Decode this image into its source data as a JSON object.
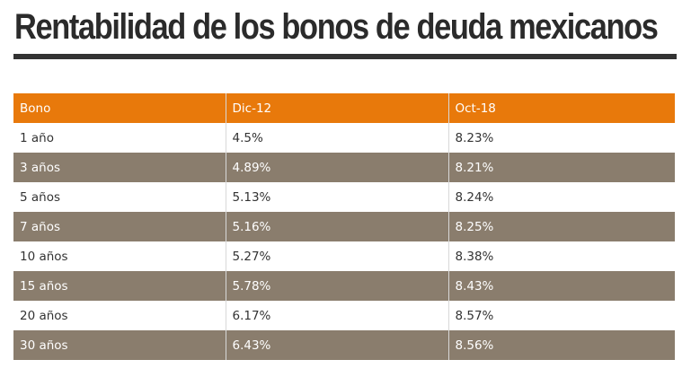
{
  "title": "Rentabilidad de los bonos de deuda mexicanos",
  "colors": {
    "header_bg": "#e8790b",
    "alt_row_bg": "#8a7d6d",
    "title_rule": "#333333"
  },
  "chart_data": {
    "type": "table",
    "title": "Rentabilidad de los bonos de deuda mexicanos",
    "columns": [
      "Bono",
      "Dic-12",
      "Oct-18"
    ],
    "rows": [
      [
        "1 año",
        "4.5%",
        "8.23%"
      ],
      [
        "3 años",
        "4.89%",
        "8.21%"
      ],
      [
        "5 años",
        "5.13%",
        "8.24%"
      ],
      [
        "7 años",
        "5.16%",
        "8.25%"
      ],
      [
        "10 años",
        "5.27%",
        "8.38%"
      ],
      [
        "15 años",
        "5.78%",
        "8.43%"
      ],
      [
        "20 años",
        "6.17%",
        "8.57%"
      ],
      [
        "30 años",
        "6.43%",
        "8.56%"
      ]
    ]
  }
}
